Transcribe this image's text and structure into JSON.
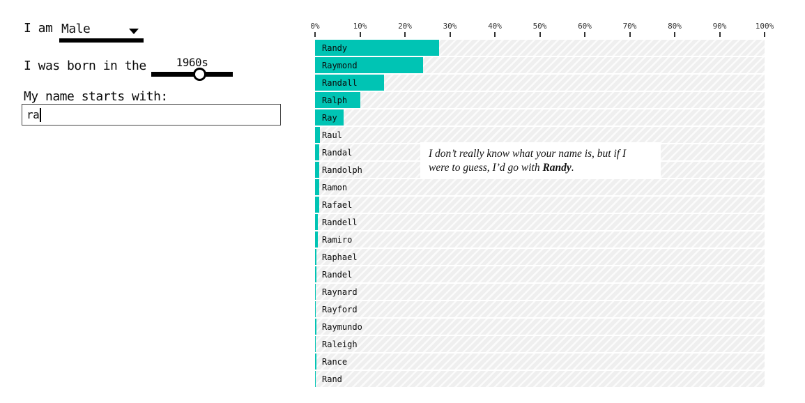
{
  "controls": {
    "gender_label": "I am",
    "gender_value": "Male",
    "decade_label": "I was born in the",
    "decade_value": "1960s",
    "decade_knob_percent": 59,
    "name_label": "My name starts with:",
    "name_value": "ra"
  },
  "chart_data": {
    "type": "bar",
    "orientation": "horizontal",
    "bar_color": "#00c4b4",
    "axis": {
      "range": [
        0,
        100
      ],
      "unit": "%",
      "ticks": [
        "0%",
        "10%",
        "20%",
        "30%",
        "40%",
        "50%",
        "60%",
        "70%",
        "80%",
        "90%",
        "100%"
      ]
    },
    "categories": [
      "Randy",
      "Raymond",
      "Randall",
      "Ralph",
      "Ray",
      "Raul",
      "Randal",
      "Randolph",
      "Ramon",
      "Rafael",
      "Randell",
      "Ramiro",
      "Raphael",
      "Randel",
      "Raynard",
      "Rayford",
      "Raymundo",
      "Raleigh",
      "Rance",
      "Rand"
    ],
    "values": [
      27.6,
      24.0,
      15.3,
      10.0,
      6.4,
      1.1,
      1.0,
      1.0,
      0.95,
      0.9,
      0.6,
      0.6,
      0.35,
      0.25,
      0.2,
      0.2,
      0.25,
      0.2,
      0.25,
      0.2
    ],
    "annotation": {
      "line1": "I don’t really know what your name is, but if I",
      "line2_pre": "were to guess, I’d go with ",
      "line2_bold": "Randy",
      "line2_post": "."
    }
  }
}
